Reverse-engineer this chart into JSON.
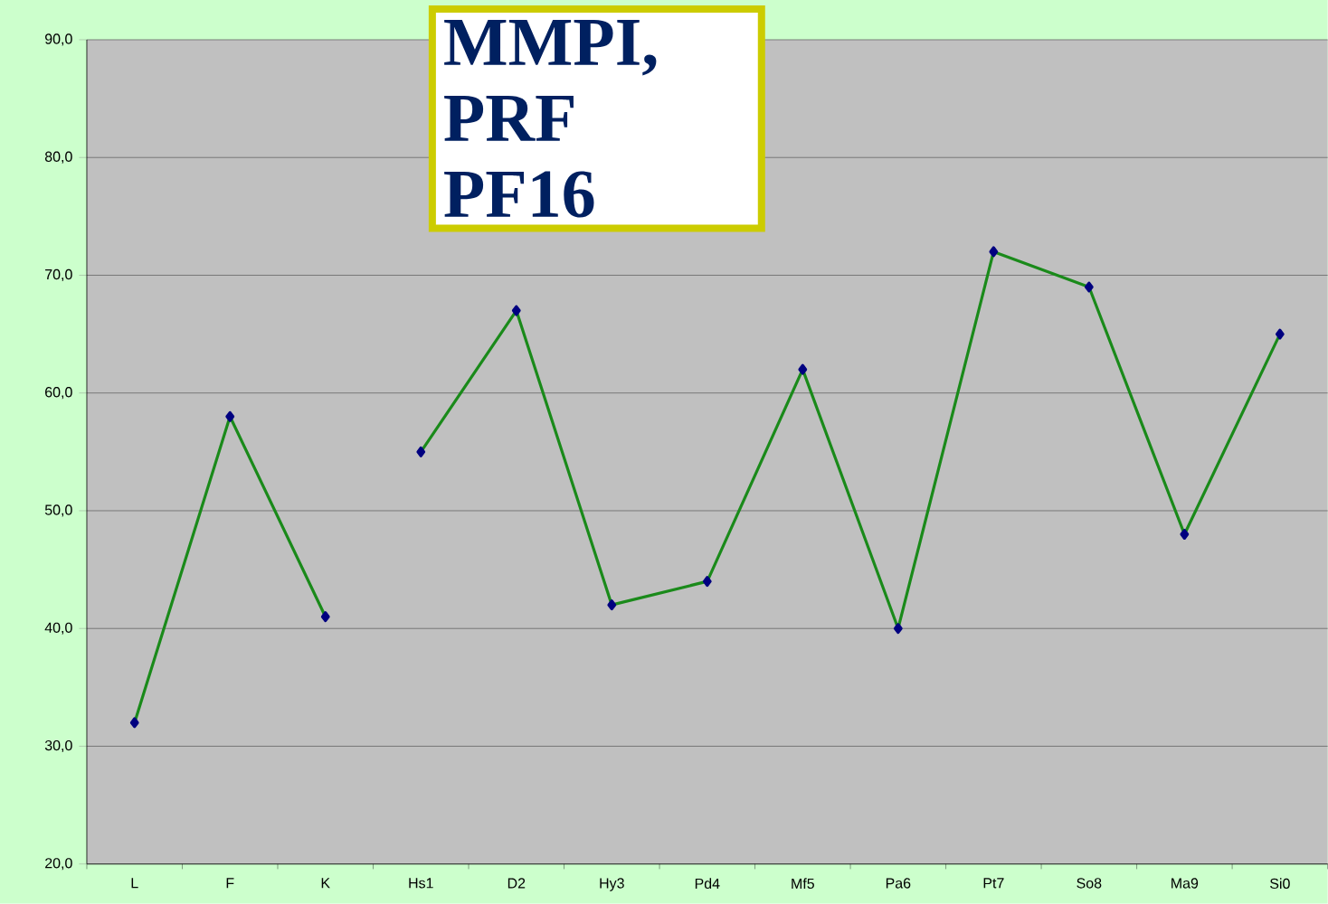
{
  "chart_data": {
    "type": "line",
    "categories": [
      "L",
      "F",
      "K",
      "Hs1",
      "D2",
      "Hy3",
      "Pd4",
      "Mf5",
      "Pa6",
      "Pt7",
      "So8",
      "Ma9",
      "Si0"
    ],
    "series": [
      {
        "color": "#1a8a1a",
        "values": [
          32,
          58,
          41,
          null,
          null,
          null,
          null,
          null,
          null,
          null,
          null,
          null,
          null
        ]
      },
      {
        "color": "#1a8a1a",
        "values": [
          null,
          null,
          null,
          55,
          67,
          42,
          44,
          62,
          40,
          72,
          69,
          48,
          65
        ]
      }
    ],
    "ylim": [
      20,
      90
    ],
    "yticks": [
      {
        "value": 20,
        "label": "20,0"
      },
      {
        "value": 30,
        "label": "30,0"
      },
      {
        "value": 40,
        "label": "40,0"
      },
      {
        "value": 50,
        "label": "50,0"
      },
      {
        "value": 60,
        "label": "60,0"
      },
      {
        "value": 70,
        "label": "70,0"
      },
      {
        "value": 80,
        "label": "80,0"
      },
      {
        "value": 90,
        "label": "90,0"
      }
    ],
    "grid": "y",
    "marker": "diamond",
    "line_style": "solid",
    "annotations": [
      "MMPI,",
      "PRF",
      "PF16"
    ]
  }
}
